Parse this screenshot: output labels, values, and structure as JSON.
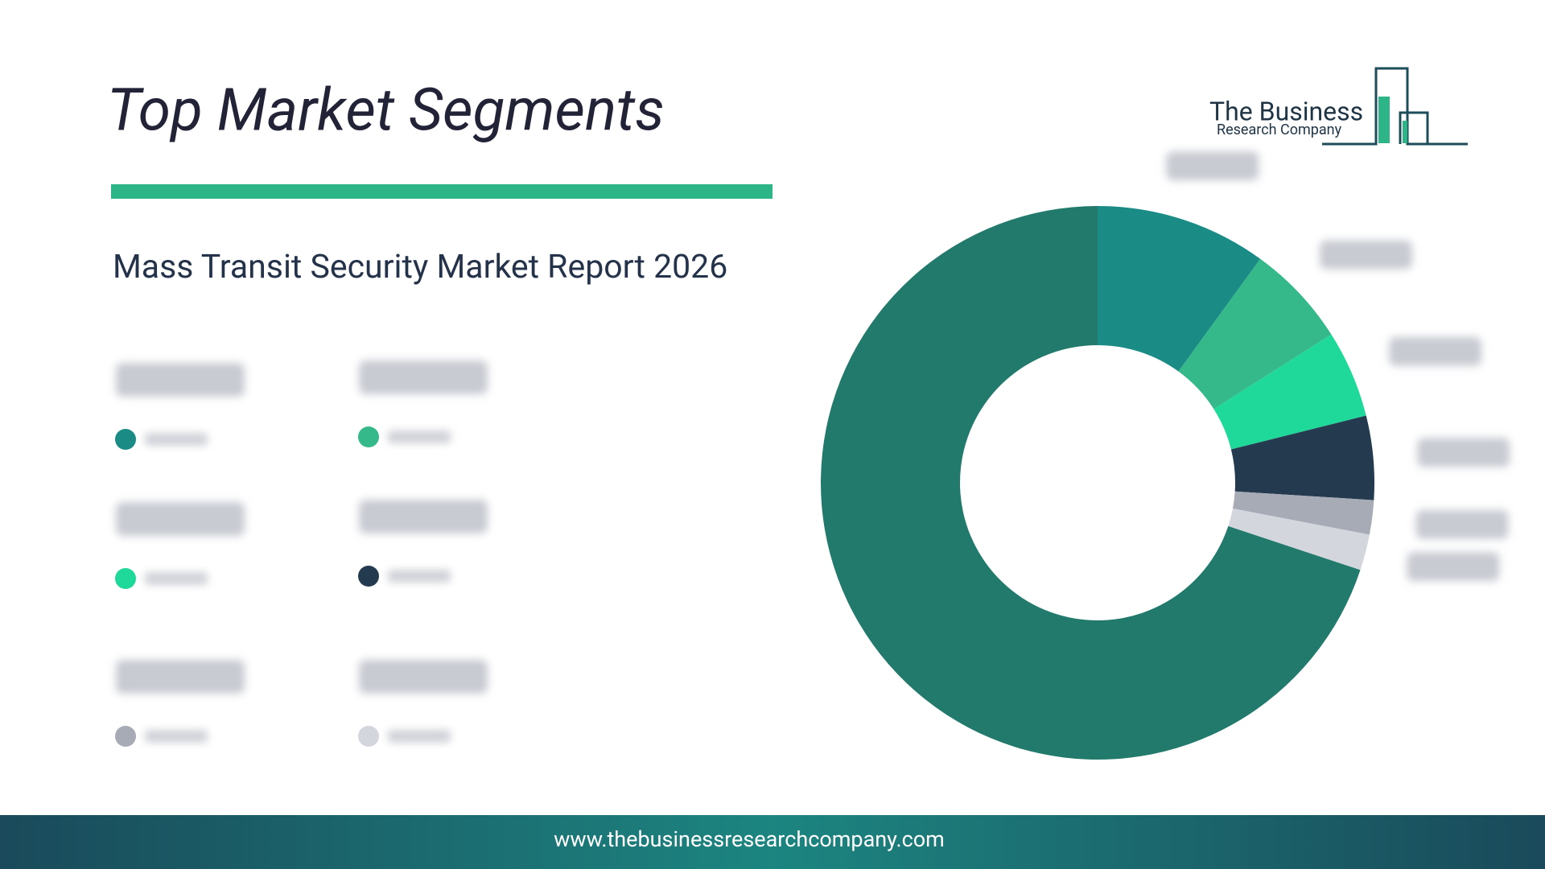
{
  "header": {
    "logo_line1": "The Business",
    "logo_line2": "Research Company"
  },
  "chart_data": {
    "type": "donut",
    "title": "Top Market Segments",
    "subtitle": "Mass Transit Security Market Report 2026",
    "categories": [
      null,
      null,
      null,
      null,
      null,
      null,
      null
    ],
    "values": [
      10.0,
      6.0,
      5.1,
      4.9,
      2.0,
      2.1,
      69.9
    ],
    "colors": [
      "#1b8b85",
      "#35b98a",
      "#1fd99b",
      "#233a4f",
      "#a7abb6",
      "#d4d6de",
      "#227a6c"
    ]
  },
  "footer": {
    "url": "www.thebusinessresearchcompany.com"
  }
}
